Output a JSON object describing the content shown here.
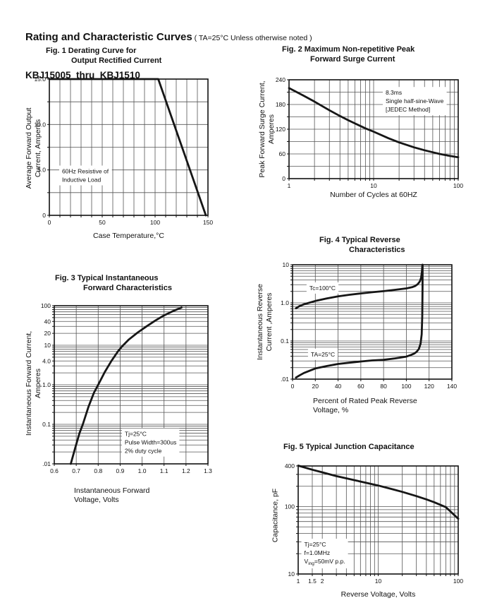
{
  "header": {
    "title": "Rating and Characteristic Curves",
    "note": " ( TA=25°C Unless otherwise noted )",
    "subtitle": "KBJ15005  thru  KBJ1510"
  },
  "colors": {
    "background": "#ffffff",
    "curve": "#161616",
    "grid": "#555555",
    "border": "#111111",
    "text": "#111111",
    "annotation_bg": "#ffffff"
  },
  "chart_data": [
    {
      "type": "line",
      "title": "Fig. 1 Derating Curve for\nOutput Rectified Current",
      "xlabel": "Case Temperature,°C",
      "ylabel": "Average Forward Output\nCurrent, Amperes",
      "x": {
        "type": "linear",
        "min": 0,
        "max": 150,
        "grid_step": 10
      },
      "y": {
        "type": "linear",
        "min": 0,
        "max": 15,
        "grid_step": 2.5
      },
      "x_ticks": [
        {
          "v": 0,
          "label": "0"
        },
        {
          "v": 50,
          "label": "50"
        },
        {
          "v": 100,
          "label": "100"
        },
        {
          "v": 150,
          "label": "150"
        }
      ],
      "y_ticks": [
        {
          "v": 15,
          "label": "15.0"
        },
        {
          "v": 10,
          "label": "10.0"
        },
        {
          "v": 5,
          "label": "5.0"
        },
        {
          "v": 0,
          "label": "0"
        }
      ],
      "series": [
        {
          "name": "average forward output current",
          "points": [
            [
              0,
              15
            ],
            [
              103,
              15
            ],
            [
              148,
              0
            ]
          ]
        }
      ],
      "annotations": [
        {
          "fx": 0.062,
          "fy": 0.64,
          "lines": [
            "60Hz Resistive of",
            "Inductive Load"
          ]
        }
      ]
    },
    {
      "type": "line",
      "title": "Fig. 2 Maximum Non-repetitive Peak\nForward Surge Current",
      "xlabel": "Number of Cycles at 60HZ",
      "ylabel": "Peak Forward Surge Current,\nAmperes",
      "x": {
        "type": "log",
        "min": 1,
        "max": 100
      },
      "y": {
        "type": "linear",
        "min": 0,
        "max": 240,
        "grid_step": 30
      },
      "x_ticks": [
        {
          "v": 1,
          "label": "1"
        },
        {
          "v": 10,
          "label": "10"
        },
        {
          "v": 100,
          "label": "100"
        }
      ],
      "y_ticks": [
        {
          "v": 240,
          "label": "240"
        },
        {
          "v": 180,
          "label": "180"
        },
        {
          "v": 120,
          "label": "120"
        },
        {
          "v": 60,
          "label": "60"
        },
        {
          "v": 0,
          "label": "0"
        }
      ],
      "series": [
        {
          "name": "peak forward surge current",
          "points": [
            [
              1,
              220
            ],
            [
              1.5,
              201
            ],
            [
              2,
              187
            ],
            [
              3,
              166
            ],
            [
              4,
              152
            ],
            [
              5,
              142
            ],
            [
              6,
              134
            ],
            [
              8,
              122
            ],
            [
              10,
              114
            ],
            [
              15,
              98
            ],
            [
              20,
              88
            ],
            [
              30,
              76
            ],
            [
              40,
              69
            ],
            [
              50,
              64
            ],
            [
              60,
              60
            ],
            [
              80,
              55
            ],
            [
              100,
              52
            ]
          ]
        }
      ],
      "annotations": [
        {
          "fx": 0.554,
          "fy": 0.08,
          "lines": [
            "8.3ms",
            "Single half-sine-Wave",
            "[JEDEC Method]"
          ]
        }
      ]
    },
    {
      "type": "line",
      "title": "Fig. 3 Typical Instantaneous\nForward Characteristics",
      "xlabel": "Instantaneous Forward\nVoltage, Volts",
      "ylabel": "Instantaneous Forward Current,\nAmperes",
      "x": {
        "type": "linear",
        "min": 0.6,
        "max": 1.3,
        "grid_step": 0.1
      },
      "y": {
        "type": "log",
        "min": 0.01,
        "max": 100
      },
      "x_ticks": [
        {
          "v": 0.6,
          "label": "0.6"
        },
        {
          "v": 0.7,
          "label": "0.7"
        },
        {
          "v": 0.8,
          "label": "0.8"
        },
        {
          "v": 0.9,
          "label": "0.9"
        },
        {
          "v": 1.0,
          "label": "1.0"
        },
        {
          "v": 1.1,
          "label": "1.1"
        },
        {
          "v": 1.2,
          "label": "1.2"
        },
        {
          "v": 1.3,
          "label": "1.3"
        }
      ],
      "y_ticks": [
        {
          "v": 100,
          "label": "100"
        },
        {
          "v": 40,
          "label": "40"
        },
        {
          "v": 20,
          "label": "20"
        },
        {
          "v": 10,
          "label": "10"
        },
        {
          "v": 4,
          "label": "4.0"
        },
        {
          "v": 1,
          "label": "1.0"
        },
        {
          "v": 0.1,
          "label": "0.1"
        },
        {
          "v": 0.01,
          "label": ".01"
        }
      ],
      "series": [
        {
          "name": "instantaneous forward current",
          "points": [
            [
              0.675,
              0.01
            ],
            [
              0.695,
              0.025
            ],
            [
              0.715,
              0.06
            ],
            [
              0.73,
              0.1
            ],
            [
              0.755,
              0.27
            ],
            [
              0.78,
              0.62
            ],
            [
              0.8,
              1.0
            ],
            [
              0.83,
              2.1
            ],
            [
              0.86,
              4.0
            ],
            [
              0.89,
              7.0
            ],
            [
              0.91,
              9.5
            ],
            [
              0.94,
              14
            ],
            [
              0.98,
              21
            ],
            [
              1.02,
              30
            ],
            [
              1.06,
              42
            ],
            [
              1.1,
              57
            ],
            [
              1.14,
              73
            ],
            [
              1.18,
              90
            ]
          ]
        }
      ],
      "annotations": [
        {
          "fx": 0.44,
          "fy": 0.78,
          "lines": [
            "Tj=25°C",
            "Pulse Width=300us",
            "2% duty cycle"
          ]
        }
      ]
    },
    {
      "type": "line",
      "title": "Fig. 4 Typical Reverse\nCharacteristics",
      "xlabel": "Percent of Rated Peak Reverse\nVoltage, %",
      "ylabel": "Instantaneous Reverse\nCurrent ,Amperes",
      "x": {
        "type": "linear",
        "min": 0,
        "max": 140,
        "grid_step": 20
      },
      "y": {
        "type": "log",
        "min": 0.01,
        "max": 10
      },
      "x_ticks": [
        {
          "v": 0,
          "label": "0"
        },
        {
          "v": 20,
          "label": "20"
        },
        {
          "v": 40,
          "label": "40"
        },
        {
          "v": 60,
          "label": "60"
        },
        {
          "v": 80,
          "label": "80"
        },
        {
          "v": 100,
          "label": "100"
        },
        {
          "v": 120,
          "label": "120"
        },
        {
          "v": 140,
          "label": "140"
        }
      ],
      "y_ticks": [
        {
          "v": 10,
          "label": "10"
        },
        {
          "v": 1,
          "label": "1.0"
        },
        {
          "v": 0.1,
          "label": "0.1"
        },
        {
          "v": 0.01,
          "label": ".01"
        }
      ],
      "series": [
        {
          "name": "Tc=100°C",
          "points": [
            [
              3,
              0.72
            ],
            [
              6,
              0.82
            ],
            [
              10,
              0.92
            ],
            [
              20,
              1.12
            ],
            [
              30,
              1.3
            ],
            [
              40,
              1.48
            ],
            [
              50,
              1.63
            ],
            [
              60,
              1.77
            ],
            [
              70,
              1.9
            ],
            [
              80,
              2.03
            ],
            [
              90,
              2.2
            ],
            [
              100,
              2.4
            ],
            [
              105,
              2.58
            ],
            [
              108,
              2.8
            ],
            [
              110,
              3.1
            ],
            [
              112,
              3.7
            ],
            [
              113,
              4.6
            ],
            [
              113.7,
              6.5
            ],
            [
              114.1,
              10
            ]
          ]
        },
        {
          "name": "TA=25°C",
          "points": [
            [
              3,
              0.011
            ],
            [
              6,
              0.0125
            ],
            [
              10,
              0.0145
            ],
            [
              20,
              0.019
            ],
            [
              30,
              0.022
            ],
            [
              40,
              0.025
            ],
            [
              50,
              0.027
            ],
            [
              60,
              0.029
            ],
            [
              70,
              0.031
            ],
            [
              80,
              0.032
            ],
            [
              90,
              0.035
            ],
            [
              100,
              0.039
            ],
            [
              104,
              0.043
            ],
            [
              107,
              0.047
            ],
            [
              109,
              0.052
            ],
            [
              111,
              0.062
            ],
            [
              112.5,
              0.085
            ],
            [
              113.5,
              0.15
            ],
            [
              114,
              0.45
            ],
            [
              114.2,
              2.5
            ],
            [
              114.3,
              10
            ]
          ]
        }
      ],
      "annotations": [
        {
          "fx": 0.088,
          "fy": 0.16,
          "lines": [
            "Tc=100°C"
          ]
        },
        {
          "fx": 0.097,
          "fy": 0.74,
          "lines": [
            "TA=25°C"
          ]
        }
      ]
    },
    {
      "type": "line",
      "title": "Fig. 5 Typical Junction Capacitance",
      "xlabel": "Reverse Voltage, Volts",
      "ylabel": "Capacitance, pF",
      "x": {
        "type": "log",
        "min": 1,
        "max": 100,
        "grid_extra": [
          1.5
        ]
      },
      "y": {
        "type": "log",
        "min": 10,
        "max": 400
      },
      "x_ticks": [
        {
          "v": 1,
          "label": "1"
        },
        {
          "v": 1.5,
          "label": "1.5"
        },
        {
          "v": 2,
          "label": "2"
        },
        {
          "v": 10,
          "label": "10"
        },
        {
          "v": 100,
          "label": "100"
        }
      ],
      "y_ticks": [
        {
          "v": 400,
          "label": "400"
        },
        {
          "v": 100,
          "label": "100"
        },
        {
          "v": 10,
          "label": "10"
        }
      ],
      "series": [
        {
          "name": "junction capacitance",
          "points": [
            [
              1,
              405
            ],
            [
              1.5,
              352
            ],
            [
              2,
              322
            ],
            [
              3,
              283
            ],
            [
              4,
              262
            ],
            [
              5,
              247
            ],
            [
              7,
              226
            ],
            [
              10,
              205
            ],
            [
              15,
              181
            ],
            [
              20,
              165
            ],
            [
              30,
              143
            ],
            [
              40,
              128
            ],
            [
              50,
              116
            ],
            [
              70,
              98
            ],
            [
              100,
              66
            ]
          ]
        }
      ],
      "annotations": [
        {
          "fx": 0.02,
          "fy": 0.68,
          "lines": [
            "Tj=25°C",
            "f=1.0MHz",
            "V_{ing}=50mV p.p."
          ]
        }
      ]
    }
  ]
}
